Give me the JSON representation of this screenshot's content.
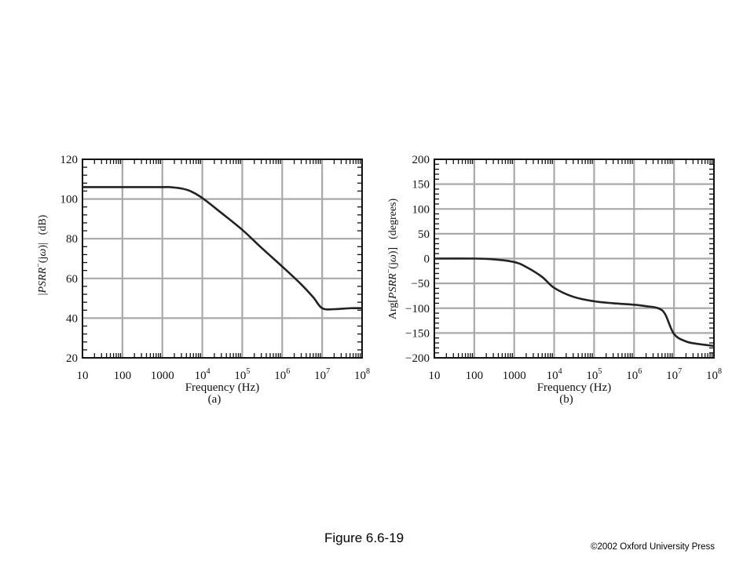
{
  "figure_caption": "Figure 6.6-19",
  "copyright": "©2002 Oxford University Press",
  "colors": {
    "grid": "#a9a9a9",
    "frame": "#111111",
    "curve": "#222222"
  },
  "chart_data": [
    {
      "type": "line",
      "panel_label": "(a)",
      "xlabel": "Frequency (Hz)",
      "ylabel_parts": [
        "|",
        "PSRR",
        "−",
        "(j",
        "ω",
        ")|",
        "(dB)"
      ],
      "x_scale": "log",
      "xlim": [
        10,
        100000000
      ],
      "ylim": [
        20,
        120
      ],
      "x_ticks": [
        {
          "base": "10",
          "exp": ""
        },
        {
          "base": "100",
          "exp": ""
        },
        {
          "base": "1000",
          "exp": ""
        },
        {
          "base": "10",
          "exp": "4"
        },
        {
          "base": "10",
          "exp": "5"
        },
        {
          "base": "10",
          "exp": "6"
        },
        {
          "base": "10",
          "exp": "7"
        },
        {
          "base": "10",
          "exp": "8"
        }
      ],
      "y_ticks": [
        "20",
        "40",
        "60",
        "80",
        "100",
        "120"
      ],
      "grid": true,
      "series": [
        {
          "x": [
            10,
            100,
            1000,
            1500,
            3000,
            5000,
            10000,
            30000,
            100000,
            300000,
            1000000,
            3000000,
            6000000,
            10000000,
            20000000,
            50000000,
            100000000
          ],
          "y": [
            106,
            106,
            106,
            106,
            105.3,
            104,
            100.5,
            93,
            84.5,
            75.5,
            66,
            57,
            50.5,
            45,
            44.5,
            45,
            45
          ]
        }
      ]
    },
    {
      "type": "line",
      "panel_label": "(b)",
      "xlabel": "Frequency (Hz)",
      "ylabel_parts": [
        "Arg[",
        "PSRR",
        "−",
        "(j",
        "ω",
        ")]",
        "(degrees)"
      ],
      "x_scale": "log",
      "xlim": [
        10,
        100000000
      ],
      "ylim": [
        -200,
        200
      ],
      "x_ticks": [
        {
          "base": "10",
          "exp": ""
        },
        {
          "base": "100",
          "exp": ""
        },
        {
          "base": "1000",
          "exp": ""
        },
        {
          "base": "10",
          "exp": "4"
        },
        {
          "base": "10",
          "exp": "5"
        },
        {
          "base": "10",
          "exp": "6"
        },
        {
          "base": "10",
          "exp": "7"
        },
        {
          "base": "10",
          "exp": "8"
        }
      ],
      "y_ticks": [
        "−200",
        "−150",
        "−100",
        "−50",
        "0",
        "50",
        "100",
        "150",
        "200"
      ],
      "grid": true,
      "series": [
        {
          "x": [
            10,
            100,
            300,
            1000,
            2000,
            5000,
            10000,
            30000,
            100000,
            300000,
            1000000,
            2000000,
            4000000,
            6000000,
            10000000,
            20000000,
            40000000,
            100000000
          ],
          "y": [
            0,
            0,
            -1.5,
            -7,
            -17,
            -37,
            -59,
            -77,
            -86,
            -90,
            -93,
            -96,
            -100,
            -112,
            -152,
            -167,
            -172,
            -176
          ]
        }
      ]
    }
  ]
}
